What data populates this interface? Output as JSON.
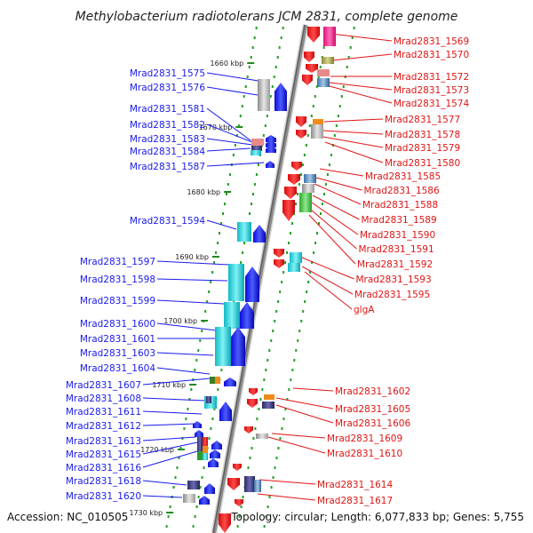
{
  "title": "Methylobacterium radiotolerans JCM 2831, complete genome",
  "footer": {
    "accession": "Accession: NC_010505",
    "summary": "Topology: circular; Length: 6,077,833 bp; Genes: 5,755"
  },
  "colors": {
    "left_label": "#1a1aee",
    "right_label": "#e01515",
    "forward_gene": "#1a1aee",
    "reverse_gene": "#e01515",
    "tick": "#1f8a1f"
  },
  "kbp_markers": [
    "1660 kbp",
    "1670 kbp",
    "1680 kbp",
    "1690 kbp",
    "1700 kbp",
    "1710 kbp",
    "1720 kbp",
    "1730 kbp"
  ],
  "left_labels": [
    "Mrad2831_1575",
    "Mrad2831_1576",
    "Mrad2831_1581",
    "Mrad2831_1582",
    "Mrad2831_1583",
    "Mrad2831_1584",
    "Mrad2831_1587",
    "Mrad2831_1594",
    "Mrad2831_1597",
    "Mrad2831_1598",
    "Mrad2831_1599",
    "Mrad2831_1600",
    "Mrad2831_1601",
    "Mrad2831_1603",
    "Mrad2831_1604",
    "Mrad2831_1607",
    "Mrad2831_1608",
    "Mrad2831_1611",
    "Mrad2831_1612",
    "Mrad2831_1613",
    "Mrad2831_1615",
    "Mrad2831_1616",
    "Mrad2831_1618",
    "Mrad2831_1620"
  ],
  "right_labels": [
    "Mrad2831_1569",
    "Mrad2831_1570",
    "Mrad2831_1572",
    "Mrad2831_1573",
    "Mrad2831_1574",
    "Mrad2831_1577",
    "Mrad2831_1578",
    "Mrad2831_1579",
    "Mrad2831_1580",
    "Mrad2831_1585",
    "Mrad2831_1586",
    "Mrad2831_1588",
    "Mrad2831_1589",
    "Mrad2831_1590",
    "Mrad2831_1591",
    "Mrad2831_1592",
    "Mrad2831_1593",
    "Mrad2831_1595",
    "glgA",
    "Mrad2831_1602",
    "Mrad2831_1605",
    "Mrad2831_1606",
    "Mrad2831_1609",
    "Mrad2831_1610",
    "Mrad2831_1614",
    "Mrad2831_1617"
  ]
}
